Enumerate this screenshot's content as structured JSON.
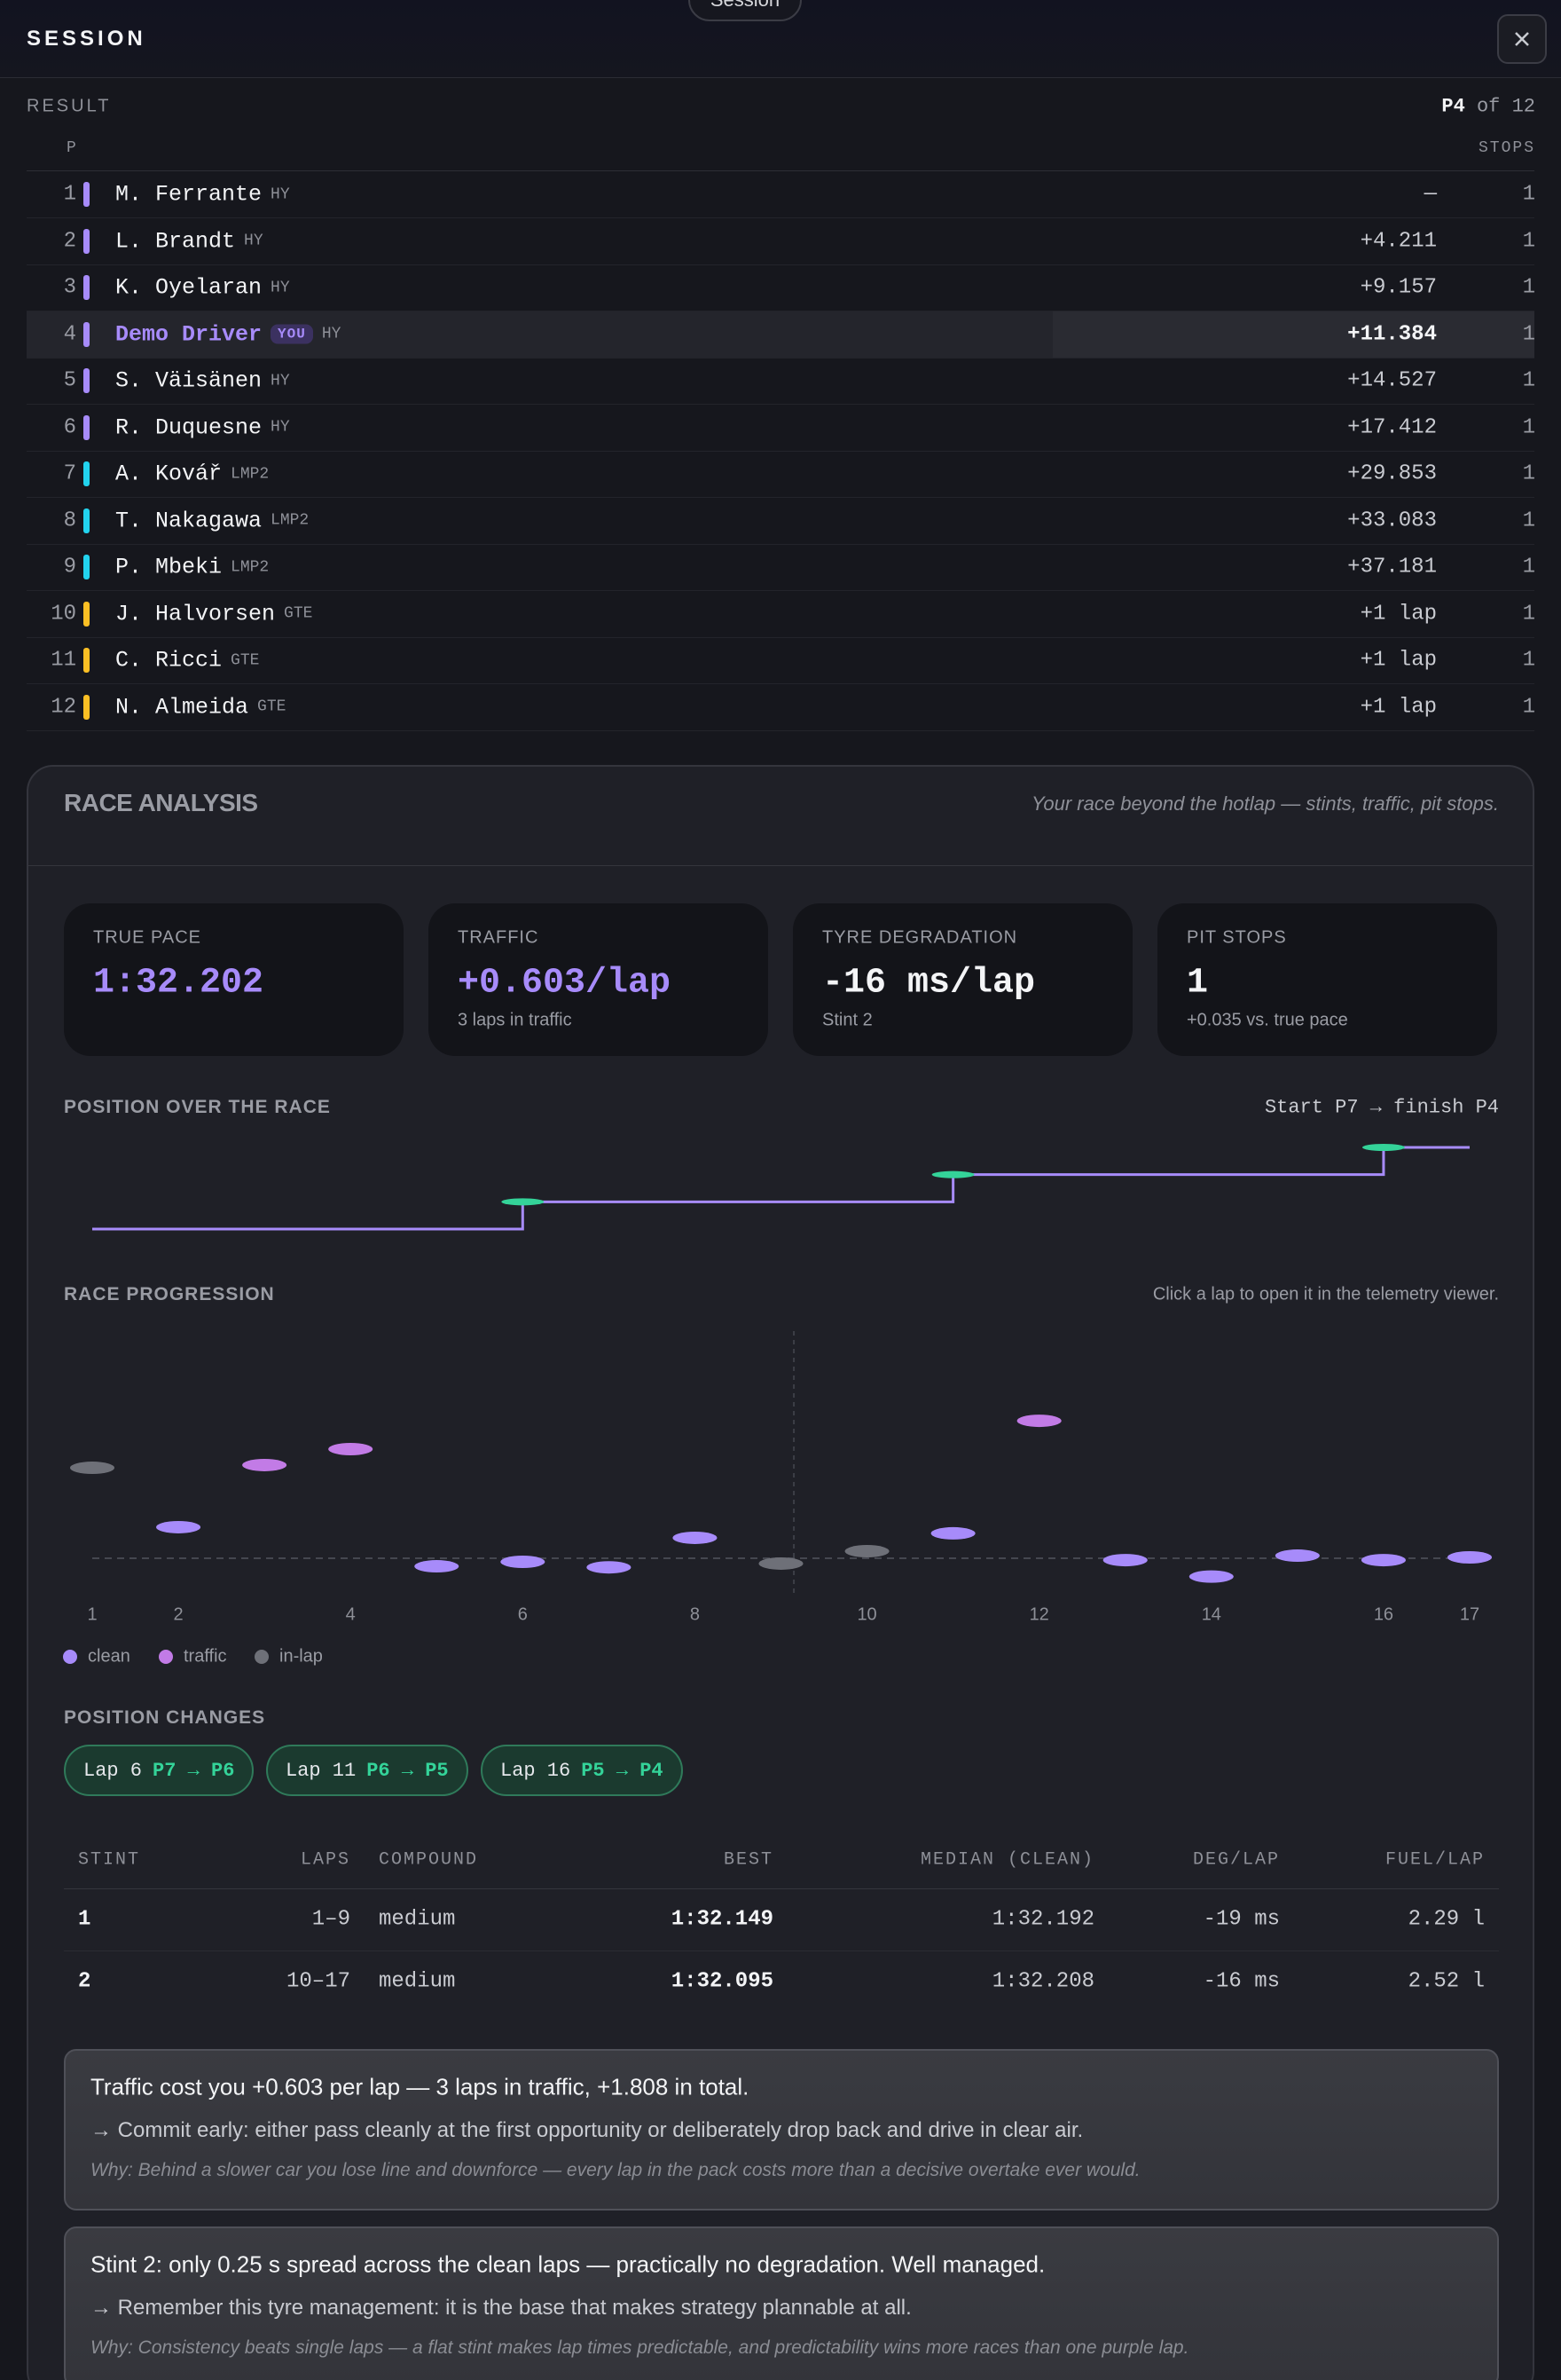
{
  "header": {
    "tab": "Session",
    "title": "SESSION"
  },
  "result": {
    "label": "RESULT",
    "position": "P4",
    "of": "of 12",
    "columns": [
      "P",
      "STOPS"
    ],
    "class_colors": {
      "HY": "#a78bfa",
      "LMP2": "#22d3ee",
      "GTE": "#fbbf24"
    },
    "rows": [
      {
        "pos": 1,
        "driver": "M. Ferrante",
        "class": "HY",
        "gap": "—",
        "stops": 1
      },
      {
        "pos": 2,
        "driver": "L. Brandt",
        "class": "HY",
        "gap": "+4.211",
        "stops": 1
      },
      {
        "pos": 3,
        "driver": "K. Oyelaran",
        "class": "HY",
        "gap": "+9.157",
        "stops": 1
      },
      {
        "pos": 4,
        "driver": "Demo Driver",
        "badge": "YOU",
        "class": "HY",
        "gap": "+11.384",
        "stops": 1
      },
      {
        "pos": 5,
        "driver": "S. Väisänen",
        "class": "HY",
        "gap": "+14.527",
        "stops": 1
      },
      {
        "pos": 6,
        "driver": "R. Duquesne",
        "class": "HY",
        "gap": "+17.412",
        "stops": 1
      },
      {
        "pos": 7,
        "driver": "A. Kovář",
        "class": "LMP2",
        "gap": "+29.853",
        "stops": 1
      },
      {
        "pos": 8,
        "driver": "T. Nakagawa",
        "class": "LMP2",
        "gap": "+33.083",
        "stops": 1
      },
      {
        "pos": 9,
        "driver": "P. Mbeki",
        "class": "LMP2",
        "gap": "+37.181",
        "stops": 1
      },
      {
        "pos": 10,
        "driver": "J. Halvorsen",
        "class": "GTE",
        "gap": "+1 lap",
        "stops": 1
      },
      {
        "pos": 11,
        "driver": "C. Ricci",
        "class": "GTE",
        "gap": "+1 lap",
        "stops": 1
      },
      {
        "pos": 12,
        "driver": "N. Almeida",
        "class": "GTE",
        "gap": "+1 lap",
        "stops": 1
      }
    ]
  },
  "analysis": {
    "title": "RACE ANALYSIS",
    "subtitle": "Your race beyond the hotlap — stints, traffic, pit stops.",
    "stats": [
      {
        "label": "TRUE PACE",
        "value": "1:32.202",
        "accent": true
      },
      {
        "label": "TRAFFIC",
        "value": "+0.603/lap",
        "sub": "3 laps in traffic",
        "accent": true
      },
      {
        "label": "TYRE DEGRADATION",
        "value": "-16 ms/lap",
        "sub": "Stint 2"
      },
      {
        "label": "PIT STOPS",
        "value": "1",
        "sub": "+0.035 vs. true pace"
      }
    ],
    "changes_title": "POSITION CHANGES",
    "changes": [
      {
        "lap": "Lap 6",
        "change": "P7 → P6"
      },
      {
        "lap": "Lap 11",
        "change": "P6 → P5"
      },
      {
        "lap": "Lap 16",
        "change": "P5 → P4"
      }
    ],
    "stints": {
      "columns": [
        "STINT",
        "LAPS",
        "COMPOUND",
        "BEST",
        "MEDIAN (CLEAN)",
        "DEG/LAP",
        "FUEL/LAP"
      ],
      "rows": [
        [
          "1",
          "1–9",
          "medium",
          "1:32.149",
          "1:32.192",
          "-19 ms",
          "2.29 l"
        ],
        [
          "2",
          "10–17",
          "medium",
          "1:32.095",
          "1:32.208",
          "-16 ms",
          "2.52 l"
        ]
      ]
    },
    "insights": [
      {
        "headline": "Traffic cost you +0.603 per lap — 3 laps in traffic, +1.808 in total.",
        "action": "→ Commit early: either pass cleanly at the first opportunity or deliberately drop back and drive in clear air.",
        "why": "Why: Behind a slower car you lose line and downforce — every lap in the pack costs more than a decisive overtake ever would."
      },
      {
        "headline": "Stint 2: only 0.25 s spread across the clean laps — practically no degradation. Well managed.",
        "action": "→ Remember this tyre management: it is the base that makes strategy plannable at all.",
        "why": "Why: Consistency beats single laps — a flat stint makes lap times predictable, and predictability wins more races than one purple lap."
      }
    ]
  },
  "chart_data": [
    {
      "type": "step",
      "title": "POSITION OVER THE RACE",
      "subtitle": "Start P7 → finish P4",
      "x": [
        1,
        6,
        11,
        16,
        17
      ],
      "values": [
        7,
        6,
        5,
        4,
        4
      ],
      "xlim": [
        1,
        17
      ],
      "ylim": [
        7,
        4
      ],
      "color": "#a78bfa",
      "marker_color": "#34d399"
    },
    {
      "type": "scatter",
      "title": "RACE PROGRESSION",
      "subtitle": "Click a lap to open it in the telemetry viewer.",
      "xlim": [
        1,
        17
      ],
      "ylim": [
        92.0,
        93.5
      ],
      "xticks": [
        1,
        2,
        4,
        6,
        8,
        10,
        12,
        14,
        16,
        17
      ],
      "reference_line": 92.202,
      "stint_boundary": 9.15,
      "series": [
        {
          "name": "clean",
          "color": "#a78bfa",
          "x": [
            2,
            5,
            6,
            7,
            8,
            11,
            13,
            14,
            15,
            16,
            17
          ],
          "values": [
            92.383,
            92.155,
            92.181,
            92.149,
            92.321,
            92.347,
            92.191,
            92.095,
            92.217,
            92.191,
            92.207
          ]
        },
        {
          "name": "traffic",
          "color": "#c27be6",
          "x": [
            3,
            4,
            12
          ],
          "values": [
            92.745,
            92.838,
            93.003
          ]
        },
        {
          "name": "in-lap",
          "color": "#6e7078",
          "x": [
            1,
            9,
            10
          ],
          "values": [
            92.729,
            92.171,
            92.243
          ]
        }
      ]
    }
  ]
}
